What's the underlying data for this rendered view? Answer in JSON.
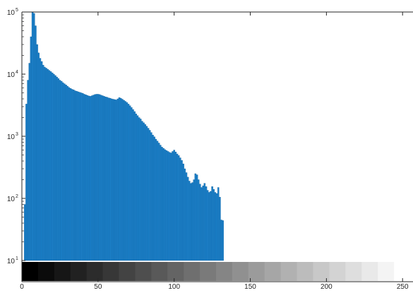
{
  "chart_data": {
    "type": "bar",
    "title": "",
    "xlabel": "",
    "ylabel": "",
    "y_scale": "log",
    "xlim": [
      0,
      255
    ],
    "ylim": [
      10,
      100000
    ],
    "x_ticks": [
      0,
      50,
      100,
      150,
      200,
      250
    ],
    "x_tick_labels": [
      "0",
      "50",
      "100",
      "150",
      "200",
      "250"
    ],
    "y_ticks": [
      10,
      100,
      1000,
      10000,
      100000
    ],
    "y_tick_labels": [
      {
        "base": "10",
        "exp": "1"
      },
      {
        "base": "10",
        "exp": "2"
      },
      {
        "base": "10",
        "exp": "3"
      },
      {
        "base": "10",
        "exp": "4"
      },
      {
        "base": "10",
        "exp": "5"
      }
    ],
    "grid": false,
    "bar_color": "#1b80c9",
    "bar_edge_color": "#0d5d9a",
    "colorbar": {
      "type": "grayscale",
      "range": [
        0,
        255
      ],
      "position": "bottom"
    },
    "x": [
      1,
      2,
      3,
      4,
      5,
      6,
      7,
      8,
      9,
      10,
      11,
      12,
      13,
      14,
      15,
      16,
      17,
      18,
      19,
      20,
      21,
      22,
      23,
      24,
      25,
      26,
      27,
      28,
      29,
      30,
      31,
      32,
      33,
      34,
      35,
      36,
      37,
      38,
      39,
      40,
      41,
      42,
      43,
      44,
      45,
      46,
      47,
      48,
      49,
      50,
      51,
      52,
      53,
      54,
      55,
      56,
      57,
      58,
      59,
      60,
      61,
      62,
      63,
      64,
      65,
      66,
      67,
      68,
      69,
      70,
      71,
      72,
      73,
      74,
      75,
      76,
      77,
      78,
      79,
      80,
      81,
      82,
      83,
      84,
      85,
      86,
      87,
      88,
      89,
      90,
      91,
      92,
      93,
      94,
      95,
      96,
      97,
      98,
      99,
      100,
      101,
      102,
      103,
      104,
      105,
      106,
      107,
      108,
      109,
      110,
      111,
      112,
      113,
      114,
      115,
      116,
      117,
      118,
      119,
      120,
      121,
      122,
      123,
      124,
      125,
      126,
      127,
      128,
      129,
      130,
      131,
      132
    ],
    "values": [
      10,
      80,
      3300,
      8000,
      15000,
      40000,
      100000,
      95000,
      60000,
      30000,
      22000,
      18000,
      16000,
      14000,
      13000,
      12500,
      12000,
      11500,
      11000,
      10500,
      10000,
      9500,
      9000,
      8500,
      8000,
      7700,
      7300,
      7000,
      6700,
      6400,
      6100,
      5900,
      5700,
      5600,
      5400,
      5300,
      5200,
      5100,
      5000,
      4900,
      4750,
      4650,
      4550,
      4450,
      4400,
      4500,
      4600,
      4700,
      4750,
      4750,
      4700,
      4600,
      4500,
      4400,
      4300,
      4250,
      4150,
      4100,
      4000,
      3950,
      3900,
      3850,
      4000,
      4200,
      4100,
      3950,
      3800,
      3650,
      3500,
      3300,
      3100,
      2900,
      2700,
      2500,
      2300,
      2150,
      2000,
      1900,
      1750,
      1650,
      1550,
      1450,
      1350,
      1250,
      1150,
      1050,
      980,
      900,
      840,
      780,
      720,
      670,
      640,
      610,
      590,
      570,
      550,
      540,
      570,
      600,
      560,
      520,
      490,
      450,
      410,
      360,
      300,
      260,
      220,
      190,
      175,
      180,
      200,
      250,
      240,
      200,
      170,
      150,
      160,
      175,
      155,
      135,
      125,
      130,
      155,
      140,
      125,
      120,
      150,
      105,
      45,
      44
    ]
  }
}
